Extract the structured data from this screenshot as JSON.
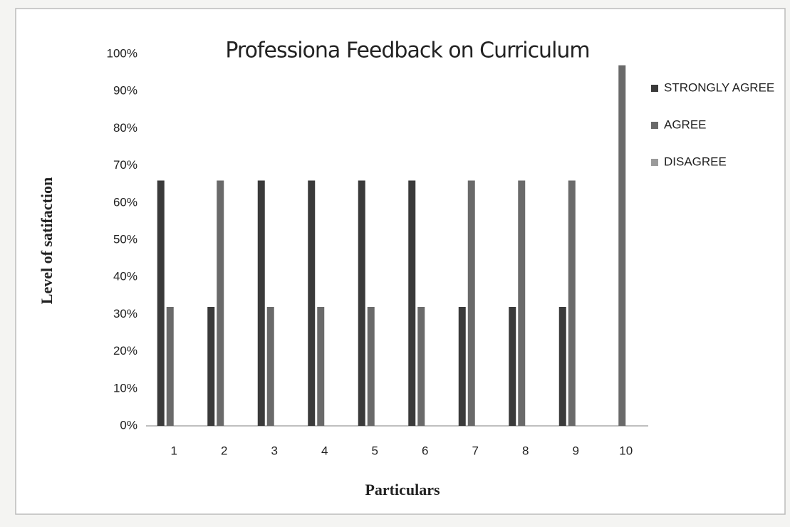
{
  "chart_data": {
    "type": "bar",
    "title": "Professiona Feedback on Curriculum",
    "x_label": "Particulars",
    "y_label": "Level of satifaction",
    "categories": [
      "1",
      "2",
      "3",
      "4",
      "5",
      "6",
      "7",
      "8",
      "9",
      "10"
    ],
    "series": [
      {
        "name": "STRONGLY AGREE",
        "color": "#3a3a3a",
        "values": [
          66,
          32,
          66,
          66,
          66,
          66,
          32,
          32,
          32,
          0
        ]
      },
      {
        "name": "AGREE",
        "color": "#6a6a6a",
        "values": [
          32,
          66,
          32,
          32,
          32,
          32,
          66,
          66,
          66,
          97
        ]
      },
      {
        "name": "DISAGREE",
        "color": "#9a9a9a",
        "values": [
          0,
          0,
          0,
          0,
          0,
          0,
          0,
          0,
          0,
          0
        ]
      }
    ],
    "ylim": [
      0,
      100
    ],
    "yticks": [
      {
        "value": 0,
        "label": "0%"
      },
      {
        "value": 10,
        "label": "10%"
      },
      {
        "value": 20,
        "label": "20%"
      },
      {
        "value": 30,
        "label": "30%"
      },
      {
        "value": 40,
        "label": "40%"
      },
      {
        "value": 50,
        "label": "50%"
      },
      {
        "value": 60,
        "label": "60%"
      },
      {
        "value": 70,
        "label": "70%"
      },
      {
        "value": 80,
        "label": "80%"
      },
      {
        "value": 90,
        "label": "90%"
      },
      {
        "value": 100,
        "label": "100%"
      }
    ],
    "legend": "right",
    "grid": false
  }
}
